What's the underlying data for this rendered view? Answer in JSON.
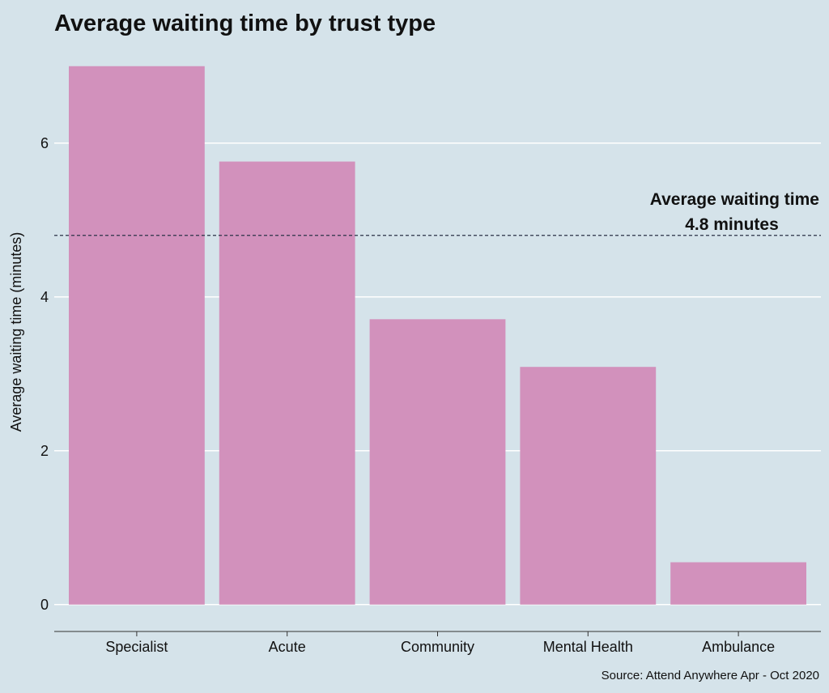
{
  "colors": {
    "background": "#d5e3ea",
    "bar": "#d291bc",
    "gridline": "#ffffff",
    "reference_line": "#2b3347",
    "axis_line": "#333333",
    "text": "#111111"
  },
  "chart_data": {
    "type": "bar",
    "title": "Average waiting time by trust type",
    "xlabel": "",
    "ylabel": "Average waiting time (minutes)",
    "categories": [
      "Specialist",
      "Acute",
      "Community",
      "Mental Health",
      "Ambulance"
    ],
    "values": [
      7.0,
      5.76,
      3.71,
      3.09,
      0.55
    ],
    "ylim": [
      -0.35,
      7.25
    ],
    "yticks": [
      0,
      2,
      4,
      6
    ],
    "grid": "horizontal",
    "reference_line": {
      "value": 4.8,
      "style": "dashed",
      "label_line1": "Average waiting time",
      "label_line2": "4.8 minutes"
    },
    "source": "Source: Attend Anywhere Apr - Oct 2020"
  }
}
